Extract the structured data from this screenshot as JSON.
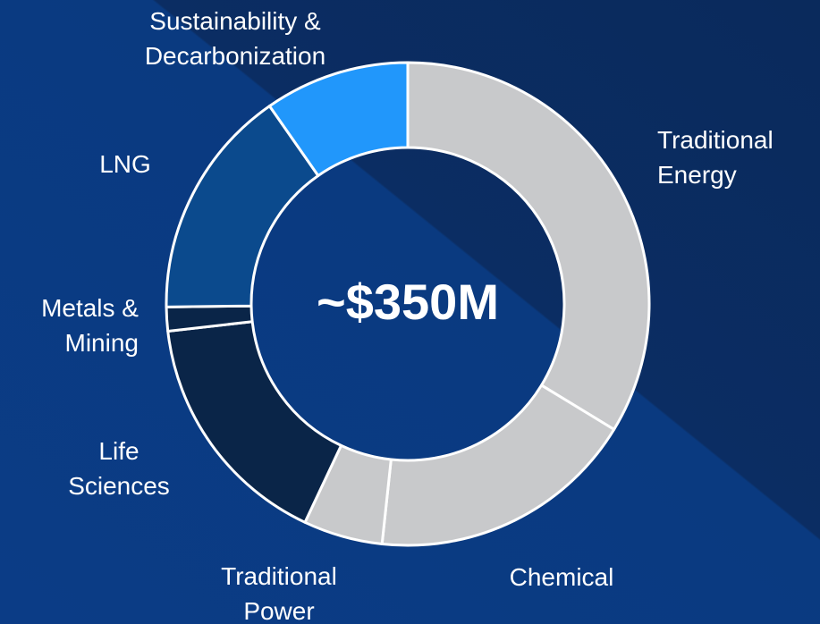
{
  "chart_data": {
    "type": "donut",
    "center_label": "~$350M",
    "categories": [
      "Traditional Energy",
      "Chemical",
      "Traditional Power",
      "Life Sciences",
      "Metals & Mining",
      "LNG",
      "Sustainability & Decarbonization"
    ],
    "values": [
      33.7,
      18,
      5.3,
      16.2,
      1.6,
      15.5,
      9.7
    ],
    "colors": [
      "#c8c9cb",
      "#c8c9cb",
      "#c8c9cb",
      "#0a2548",
      "#0a2548",
      "#0b4a8d",
      "#2197fb"
    ]
  }
}
